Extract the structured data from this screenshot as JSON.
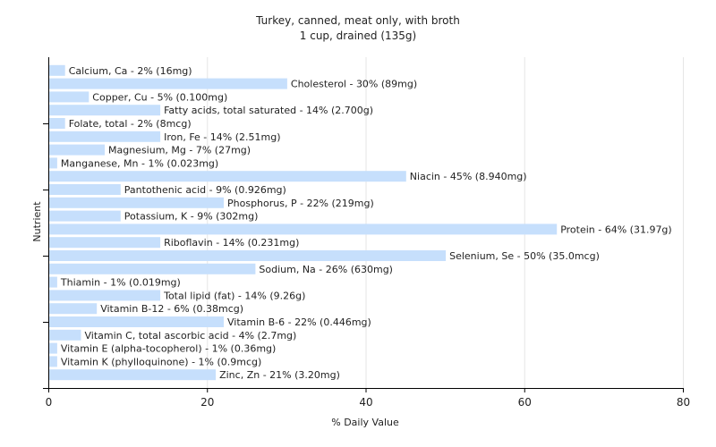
{
  "chart_data": {
    "type": "bar",
    "orientation": "horizontal",
    "title": "Turkey, canned, meat only, with broth",
    "subtitle": "1 cup, drained (135g)",
    "xlabel": "% Daily Value",
    "ylabel": "Nutrient",
    "xlim": [
      0,
      80
    ],
    "xticks": [
      0,
      20,
      40,
      60,
      80
    ],
    "grid": true,
    "categories": [
      "Calcium, Ca - 2% (16mg)",
      "Cholesterol - 30% (89mg)",
      "Copper, Cu - 5% (0.100mg)",
      "Fatty acids, total saturated - 14% (2.700g)",
      "Folate, total - 2% (8mcg)",
      "Iron, Fe - 14% (2.51mg)",
      "Magnesium, Mg - 7% (27mg)",
      "Manganese, Mn - 1% (0.023mg)",
      "Niacin - 45% (8.940mg)",
      "Pantothenic acid - 9% (0.926mg)",
      "Phosphorus, P - 22% (219mg)",
      "Potassium, K - 9% (302mg)",
      "Protein - 64% (31.97g)",
      "Riboflavin - 14% (0.231mg)",
      "Selenium, Se - 50% (35.0mcg)",
      "Sodium, Na - 26% (630mg)",
      "Thiamin - 1% (0.019mg)",
      "Total lipid (fat) - 14% (9.26g)",
      "Vitamin B-12 - 6% (0.38mcg)",
      "Vitamin B-6 - 22% (0.446mg)",
      "Vitamin C, total ascorbic acid - 4% (2.7mg)",
      "Vitamin E (alpha-tocopherol) - 1% (0.36mg)",
      "Vitamin K (phylloquinone) - 1% (0.9mcg)",
      "Zinc, Zn - 21% (3.20mg)"
    ],
    "values": [
      2,
      30,
      5,
      14,
      2,
      14,
      7,
      1,
      45,
      9,
      22,
      9,
      64,
      14,
      50,
      26,
      1,
      14,
      6,
      22,
      4,
      1,
      1,
      21
    ],
    "colors": {
      "bar": "#c6dffc",
      "grid": "#e6e6e6",
      "axis": "#000000"
    }
  }
}
